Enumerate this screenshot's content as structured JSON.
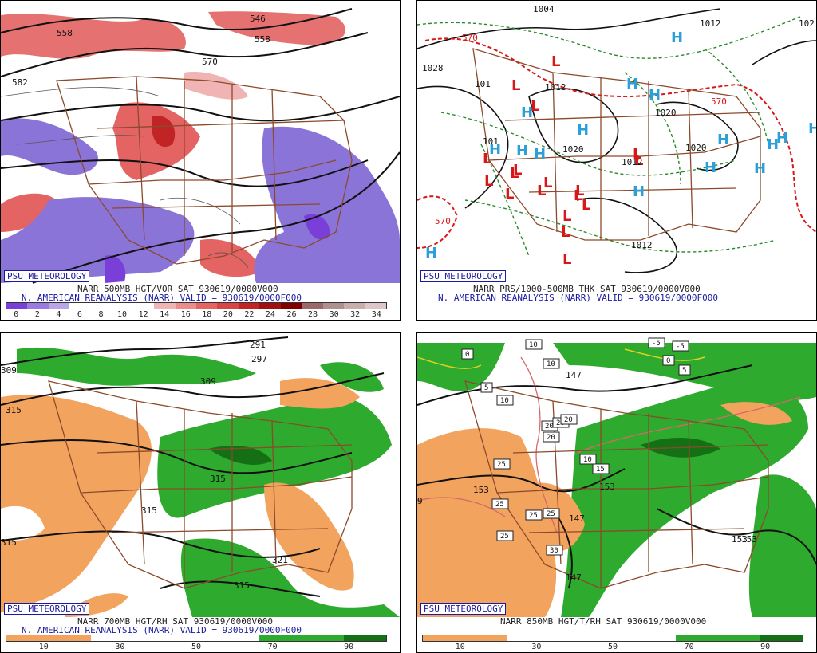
{
  "panels": [
    {
      "id": "p500",
      "psu_label": "PSU METEOROLOGY",
      "caption_line1": "NARR 500MB HGT/VOR SAT 930619/0000V000",
      "caption_line2": "N. AMERICAN REANALYSIS (NARR) VALID = 930619/0000F000",
      "contour_labels": [
        "558",
        "546",
        "558",
        "570",
        "582"
      ],
      "scale_ticks": [
        "0",
        "2",
        "4",
        "6",
        "8",
        "10",
        "12",
        "14",
        "16",
        "18",
        "20",
        "22",
        "24",
        "26",
        "28",
        "30",
        "32",
        "34"
      ],
      "scale_colors": [
        "#7a3fd8",
        "#9c7be0",
        "#b9a6e8",
        "#ffffff",
        "#ffffff",
        "#ffffff",
        "#ffffff",
        "#f0b4b4",
        "#ec8d8d",
        "#e46464",
        "#d84545",
        "#c02424",
        "#a01010",
        "#800000",
        "#9a6a6a",
        "#b08f8f",
        "#c8adad",
        "#dcc8c8"
      ]
    },
    {
      "id": "pthk",
      "psu_label": "PSU METEOROLOGY",
      "caption_line1": "NARR PRS/1000-500MB THK SAT 930619/0000V000",
      "caption_line2": "N. AMERICAN REANALYSIS (NARR) VALID = 930619/0000F000",
      "contour_labels": [
        "1004",
        "1012",
        "102",
        "1028",
        "101",
        "1012",
        "1020",
        "1020",
        "1012",
        "1012",
        "1020",
        "570",
        "570",
        "570",
        "101"
      ],
      "highs": [
        "H",
        "H",
        "H",
        "H",
        "H",
        "H",
        "H",
        "H",
        "H",
        "H",
        "H",
        "H",
        "H",
        "H",
        "H",
        "H"
      ],
      "lows": [
        "L",
        "L",
        "L",
        "L",
        "L",
        "L",
        "L",
        "L",
        "L",
        "L",
        "L",
        "L",
        "L",
        "L",
        "L",
        "L",
        "L",
        "L"
      ]
    },
    {
      "id": "p700",
      "psu_label": "PSU METEOROLOGY",
      "caption_line1": "NARR 700MB HGT/RH SAT 930619/0000V000",
      "caption_line2": "N. AMERICAN REANALYSIS (NARR) VALID = 930619/0000F000",
      "contour_labels": [
        "291",
        "297",
        "309",
        "309",
        "315",
        "315",
        "315",
        "315",
        "321",
        "315"
      ],
      "scale_ticks": [
        "10",
        "30",
        "50",
        "70",
        "90"
      ]
    },
    {
      "id": "p850",
      "psu_label": "PSU METEOROLOGY",
      "caption_line1": "NARR 850MB HGT/T/RH SAT 930619/0000V000",
      "contour_labels": [
        "147",
        "153",
        "153",
        "147",
        "147",
        "153",
        "153",
        "9"
      ],
      "temp_boxes": [
        "0",
        "10",
        "10",
        "-5",
        "-5",
        "0",
        "5",
        "5",
        "10",
        "20",
        "20",
        "20",
        "20",
        "10",
        "15",
        "25",
        "25",
        "25",
        "25",
        "25",
        "30"
      ],
      "scale_ticks": [
        "10",
        "30",
        "50",
        "70",
        "90"
      ]
    }
  ],
  "colors": {
    "state_lines": "#8b4a2b",
    "vor_pos": "#e05858",
    "vor_neg": "#8b74d8",
    "rh_dry": "#f2a35e",
    "rh_wet": "#2eaa2e",
    "high_marker": "#2a9fd8",
    "low_marker": "#d81818",
    "thickness": "#2a8a2a",
    "psu_text": "#1a1aa0"
  }
}
